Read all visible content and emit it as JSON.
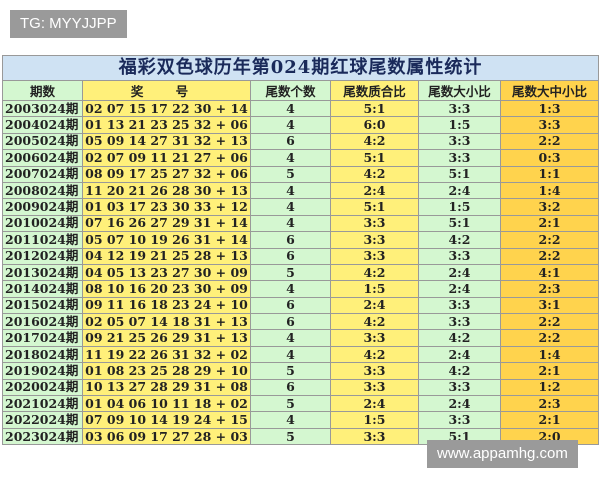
{
  "watermark_top": "TG: MYYJJPP",
  "watermark_bottom": "www.appamhg.com",
  "table": {
    "title": "福彩双色球历年第024期红球尾数属性统计",
    "headers": [
      "期数",
      "奖 号",
      "尾数个数",
      "尾数质合比",
      "尾数大小比",
      "尾数大中小比"
    ],
    "rows": [
      [
        "2003024期",
        "02 07 15 17 22 30 + 14",
        4,
        "5:1",
        "3:3",
        "1:3"
      ],
      [
        "2004024期",
        "01 13 21 23 25 32 + 06",
        4,
        "6:0",
        "1:5",
        "3:3"
      ],
      [
        "2005024期",
        "05 09 14 27 31 32 + 13",
        6,
        "4:2",
        "3:3",
        "2:2"
      ],
      [
        "2006024期",
        "02 07 09 11 21 27 + 06",
        4,
        "5:1",
        "3:3",
        "0:3"
      ],
      [
        "2007024期",
        "08 09 17 25 27 32 + 06",
        5,
        "4:2",
        "5:1",
        "1:1"
      ],
      [
        "2008024期",
        "11 20 21 26 28 30 + 13",
        4,
        "2:4",
        "2:4",
        "1:4"
      ],
      [
        "2009024期",
        "01 03 17 23 30 33 + 12",
        4,
        "5:1",
        "1:5",
        "3:2"
      ],
      [
        "2010024期",
        "07 16 26 27 29 31 + 14",
        4,
        "3:3",
        "5:1",
        "2:1"
      ],
      [
        "2011024期",
        "05 07 10 19 26 31 + 14",
        6,
        "3:3",
        "4:2",
        "2:2"
      ],
      [
        "2012024期",
        "04 12 19 21 25 28 + 13",
        6,
        "3:3",
        "3:3",
        "2:2"
      ],
      [
        "2013024期",
        "04 05 13 23 27 30 + 09",
        5,
        "4:2",
        "2:4",
        "4:1"
      ],
      [
        "2014024期",
        "08 10 16 20 23 30 + 09",
        4,
        "1:5",
        "2:4",
        "2:3"
      ],
      [
        "2015024期",
        "09 11 16 18 23 24 + 10",
        6,
        "2:4",
        "3:3",
        "3:1"
      ],
      [
        "2016024期",
        "02 05 07 14 18 31 + 13",
        6,
        "4:2",
        "3:3",
        "2:2"
      ],
      [
        "2017024期",
        "09 21 25 26 29 31 + 13",
        4,
        "3:3",
        "4:2",
        "2:2"
      ],
      [
        "2018024期",
        "11 19 22 26 31 32 + 02",
        4,
        "4:2",
        "2:4",
        "1:4"
      ],
      [
        "2019024期",
        "01 08 23 25 28 29 + 10",
        5,
        "3:3",
        "4:2",
        "2:1"
      ],
      [
        "2020024期",
        "10 13 27 28 29 31 + 08",
        6,
        "3:3",
        "3:3",
        "1:2"
      ],
      [
        "2021024期",
        "01 04 06 10 11 18 + 02",
        5,
        "2:4",
        "2:4",
        "2:3"
      ],
      [
        "2022024期",
        "07 09 10 14 19 24 + 15",
        4,
        "1:5",
        "3:3",
        "2:1"
      ],
      [
        "2023024期",
        "03 06 09 17 27 28 + 03",
        5,
        "3:3",
        "5:1",
        "2:0"
      ]
    ]
  }
}
